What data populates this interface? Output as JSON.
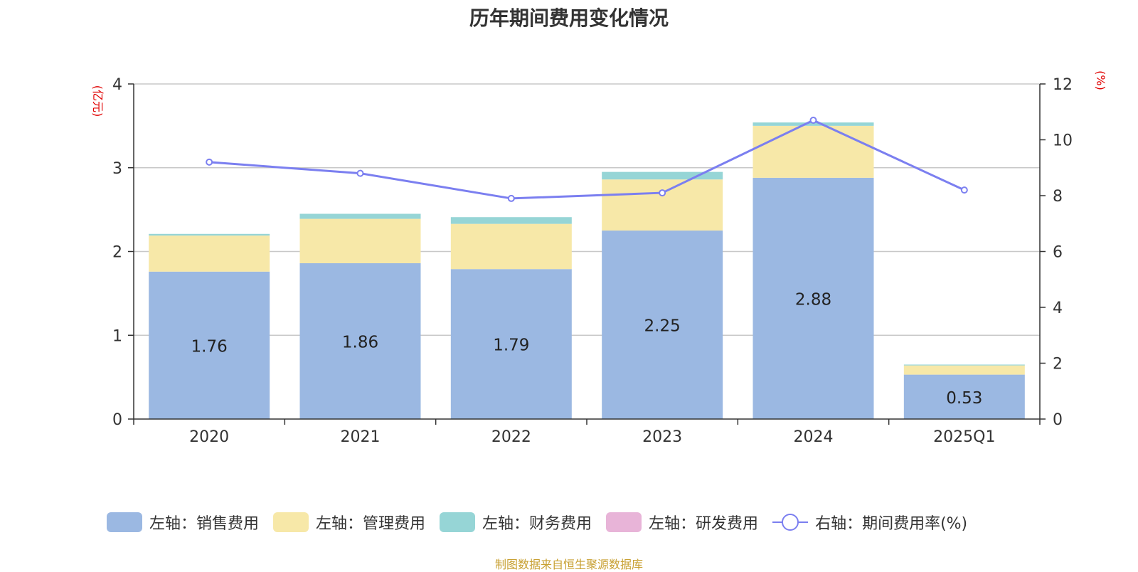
{
  "title": "历年期间费用变化情况",
  "source": "制图数据来自恒生聚源数据库",
  "left_axis_unit": "(亿元)",
  "right_axis_unit": "(%)",
  "chart_data": {
    "type": "bar",
    "stacked": true,
    "categories": [
      "2020",
      "2021",
      "2022",
      "2023",
      "2024",
      "2025Q1"
    ],
    "y_left": {
      "min": 0,
      "max": 4,
      "ticks": [
        "0",
        "1",
        "2",
        "3",
        "4"
      ]
    },
    "y_right": {
      "min": 0,
      "max": 12,
      "ticks": [
        "0",
        "2",
        "4",
        "6",
        "8",
        "10",
        "12"
      ]
    },
    "series": [
      {
        "name": "左轴：销售费用",
        "type": "bar",
        "axis": "left",
        "color": "#9bb8e2",
        "values": [
          1.76,
          1.86,
          1.79,
          2.25,
          2.88,
          0.53
        ],
        "labels": [
          "1.76",
          "1.86",
          "1.79",
          "2.25",
          "2.88",
          "0.53"
        ]
      },
      {
        "name": "左轴：管理费用",
        "type": "bar",
        "axis": "left",
        "color": "#f7e8a8",
        "values": [
          0.43,
          0.53,
          0.54,
          0.61,
          0.62,
          0.11
        ]
      },
      {
        "name": "左轴：财务费用",
        "type": "bar",
        "axis": "left",
        "color": "#96d5d6",
        "values": [
          0.02,
          0.06,
          0.08,
          0.09,
          0.04,
          0.01
        ]
      },
      {
        "name": "左轴：研发费用",
        "type": "bar",
        "axis": "left",
        "color": "#e8b4d8",
        "values": [
          0,
          0,
          0,
          0,
          0,
          0
        ]
      },
      {
        "name": "右轴：期间费用率(%)",
        "type": "line",
        "axis": "right",
        "color": "#7b7ff0",
        "values": [
          9.2,
          8.8,
          7.9,
          8.1,
          10.7,
          8.2
        ]
      }
    ],
    "grid": true,
    "legend_position": "bottom"
  }
}
